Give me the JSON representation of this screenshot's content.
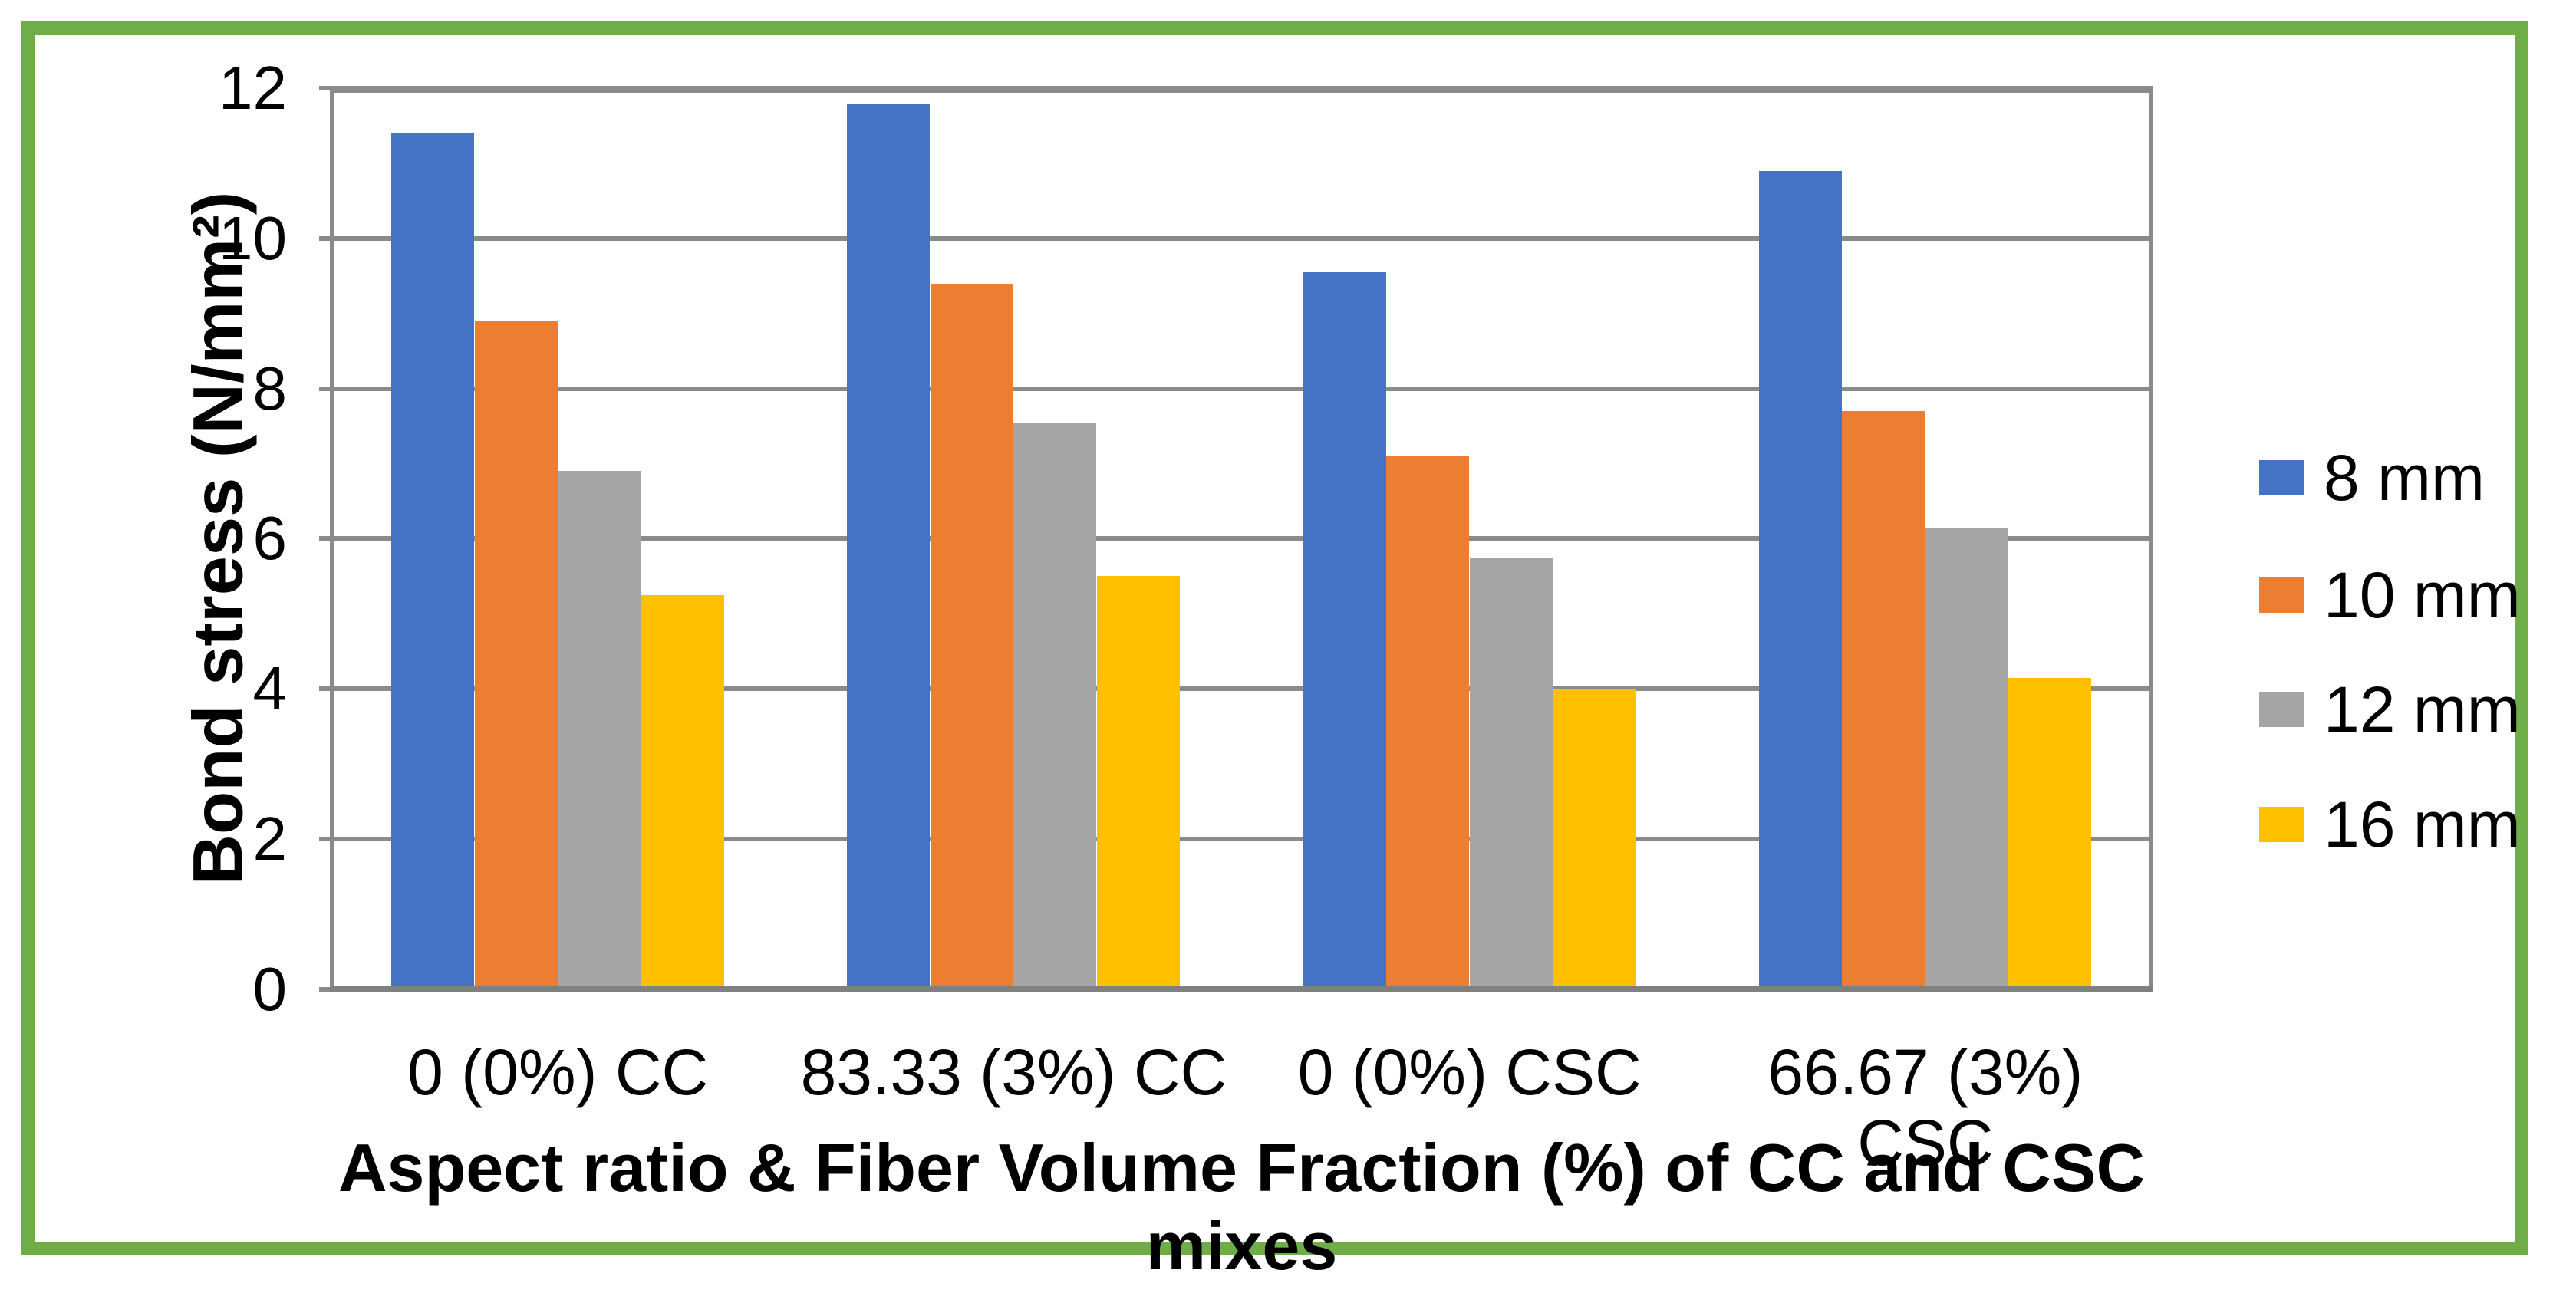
{
  "chart_data": {
    "type": "bar",
    "title": "",
    "categories": [
      "0 (0%) CC",
      "83.33 (3%) CC",
      "0 (0%) CSC",
      "66.67 (3%) CSC"
    ],
    "series": [
      {
        "name": "8 mm",
        "color": "#4472C4",
        "values": [
          11.4,
          11.8,
          9.55,
          10.9
        ]
      },
      {
        "name": "10 mm",
        "color": "#ED7D31",
        "values": [
          8.9,
          9.4,
          7.1,
          7.7
        ]
      },
      {
        "name": "12 mm",
        "color": "#A5A5A5",
        "values": [
          6.9,
          7.55,
          5.75,
          6.15
        ]
      },
      {
        "name": "16 mm",
        "color": "#FFC000",
        "values": [
          5.25,
          5.5,
          4.0,
          4.15
        ]
      }
    ],
    "xlabel": "Aspect ratio & Fiber Volume Fraction (%) of CC and CSC mixes",
    "ylabel": "Bond stress (N/mm²)",
    "ylim": [
      0,
      12
    ],
    "ytick_step": 2,
    "ytick_labels": [
      "0",
      "2",
      "4",
      "6",
      "8",
      "10",
      "12"
    ],
    "grid": true,
    "legend_position": "right"
  },
  "colors": {
    "frame_border": "#6FAD47",
    "gridline": "#8a8a8a",
    "axis_line": "#808080",
    "text": "#000000",
    "background": "#ffffff"
  }
}
